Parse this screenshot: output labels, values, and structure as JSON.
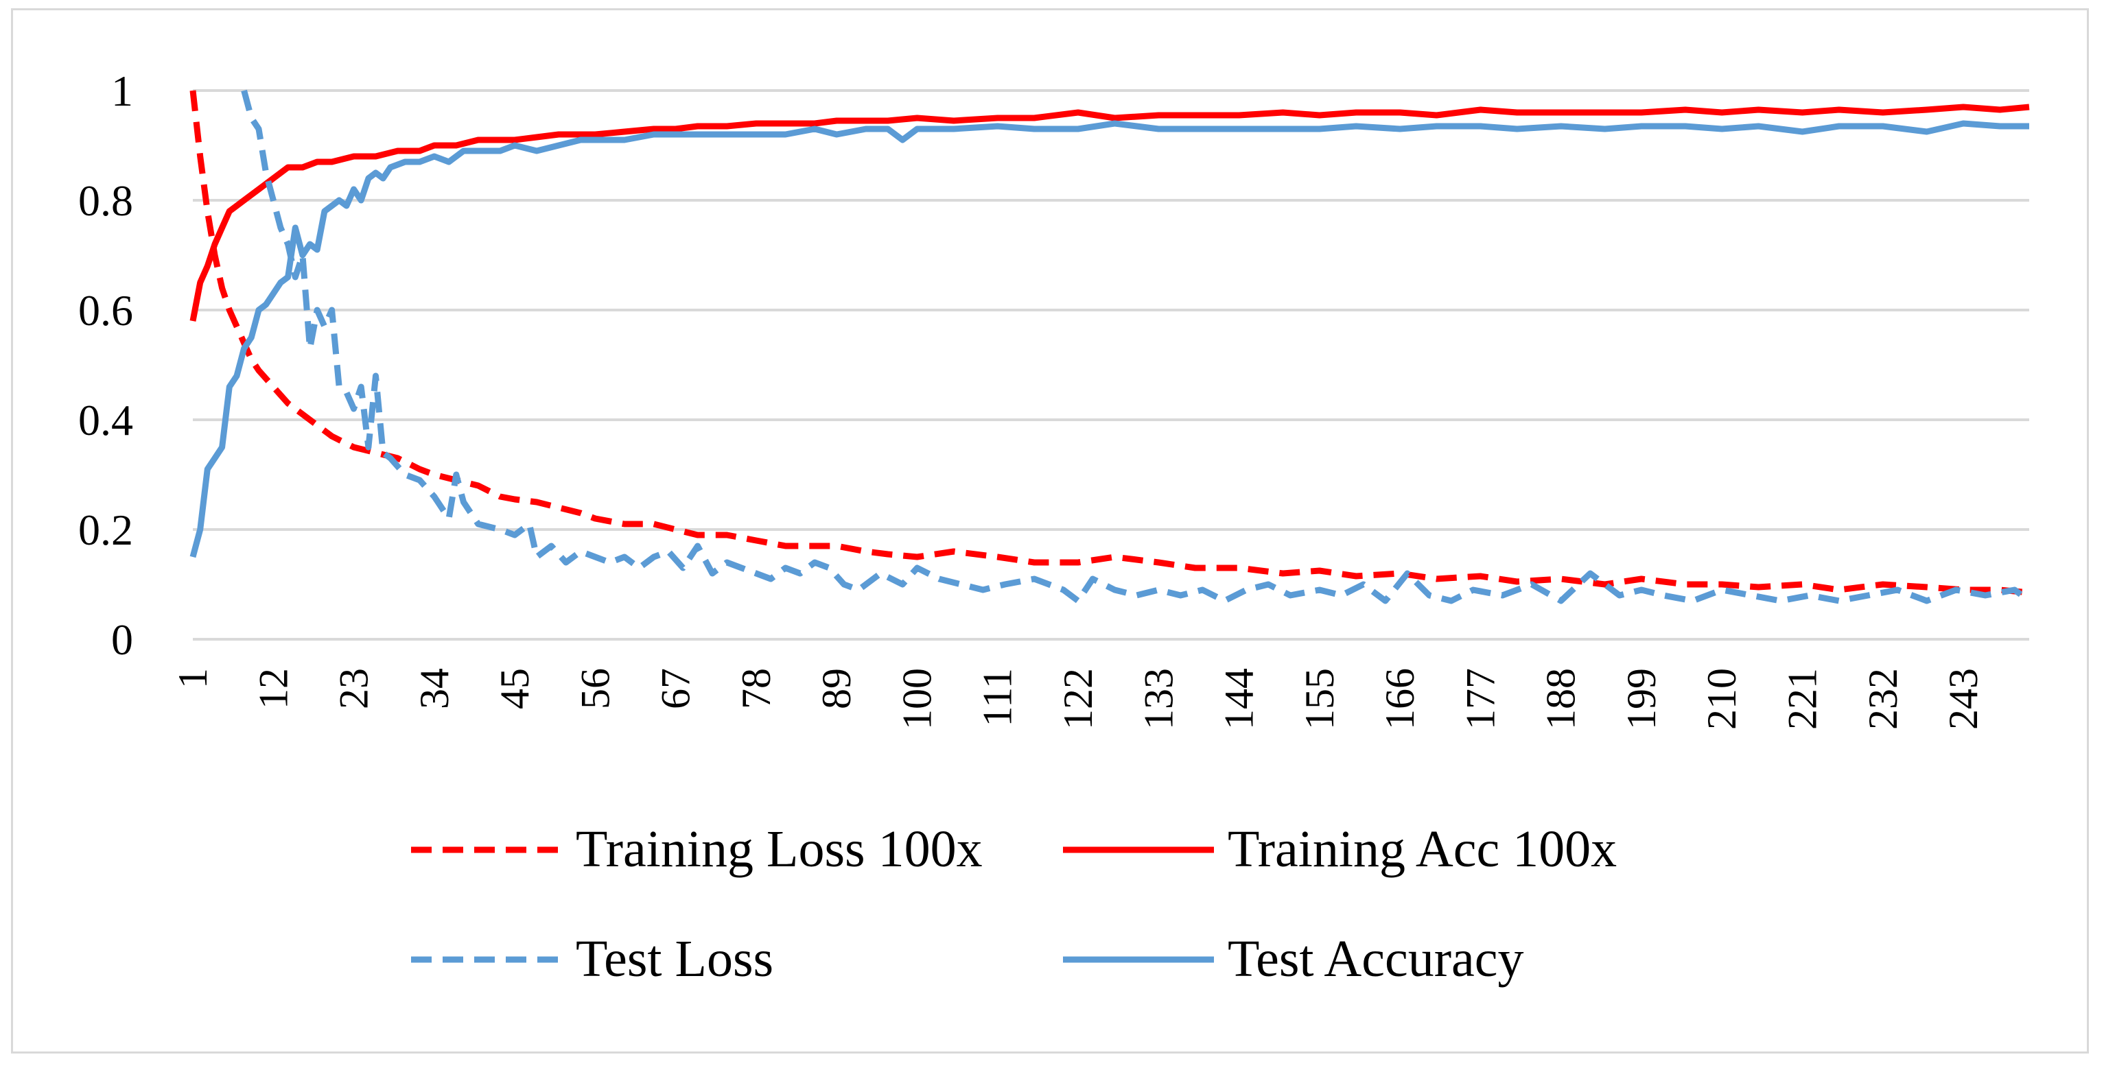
{
  "chart_data": {
    "type": "line",
    "title": "",
    "xlabel": "",
    "ylabel": "",
    "xlim": [
      1,
      252
    ],
    "ylim": [
      0,
      1
    ],
    "y_ticks": [
      "0",
      "0.2",
      "0.4",
      "0.6",
      "0.8",
      "1"
    ],
    "y_tick_values": [
      0,
      0.2,
      0.4,
      0.6,
      0.8,
      1
    ],
    "x_ticks": [
      "1",
      "12",
      "23",
      "34",
      "45",
      "56",
      "67",
      "78",
      "89",
      "100",
      "111",
      "122",
      "133",
      "144",
      "155",
      "166",
      "177",
      "188",
      "199",
      "210",
      "221",
      "232",
      "243"
    ],
    "x_tick_values": [
      1,
      12,
      23,
      34,
      45,
      56,
      67,
      78,
      89,
      100,
      111,
      122,
      133,
      144,
      155,
      166,
      177,
      188,
      199,
      210,
      221,
      232,
      243
    ],
    "grid": true,
    "legend_position": "bottom",
    "series": [
      {
        "name": "Training Loss 100x",
        "color": "#ff0000",
        "dash": "dashed",
        "x": [
          1,
          2,
          3,
          4,
          5,
          6,
          7,
          8,
          9,
          10,
          12,
          14,
          16,
          18,
          20,
          23,
          26,
          29,
          32,
          34,
          37,
          40,
          43,
          45,
          48,
          51,
          54,
          56,
          60,
          64,
          67,
          70,
          74,
          78,
          82,
          86,
          89,
          93,
          96,
          100,
          105,
          111,
          116,
          122,
          127,
          133,
          138,
          144,
          150,
          155,
          160,
          166,
          171,
          177,
          182,
          188,
          194,
          199,
          205,
          210,
          215,
          221,
          226,
          232,
          238,
          243,
          248,
          252
        ],
        "values": [
          1.0,
          0.88,
          0.78,
          0.7,
          0.64,
          0.6,
          0.57,
          0.54,
          0.51,
          0.49,
          0.46,
          0.43,
          0.41,
          0.39,
          0.37,
          0.35,
          0.34,
          0.33,
          0.31,
          0.3,
          0.29,
          0.28,
          0.26,
          0.255,
          0.25,
          0.24,
          0.23,
          0.22,
          0.21,
          0.21,
          0.2,
          0.19,
          0.19,
          0.18,
          0.17,
          0.17,
          0.17,
          0.16,
          0.155,
          0.15,
          0.16,
          0.15,
          0.14,
          0.14,
          0.15,
          0.14,
          0.13,
          0.13,
          0.12,
          0.125,
          0.115,
          0.12,
          0.11,
          0.115,
          0.105,
          0.11,
          0.1,
          0.11,
          0.1,
          0.1,
          0.095,
          0.1,
          0.09,
          0.1,
          0.095,
          0.09,
          0.09,
          0.085
        ]
      },
      {
        "name": "Training Acc 100x",
        "color": "#ff0000",
        "dash": "solid",
        "x": [
          1,
          2,
          3,
          4,
          5,
          6,
          7,
          8,
          9,
          10,
          12,
          14,
          16,
          18,
          20,
          23,
          26,
          29,
          32,
          34,
          37,
          40,
          43,
          45,
          48,
          51,
          56,
          60,
          64,
          67,
          70,
          74,
          78,
          82,
          86,
          89,
          93,
          96,
          100,
          105,
          111,
          116,
          122,
          127,
          133,
          138,
          144,
          150,
          155,
          160,
          166,
          171,
          177,
          182,
          188,
          194,
          199,
          205,
          210,
          215,
          221,
          226,
          232,
          238,
          243,
          248,
          252
        ],
        "values": [
          0.58,
          0.65,
          0.68,
          0.72,
          0.75,
          0.78,
          0.79,
          0.8,
          0.81,
          0.82,
          0.84,
          0.86,
          0.86,
          0.87,
          0.87,
          0.88,
          0.88,
          0.89,
          0.89,
          0.9,
          0.9,
          0.91,
          0.91,
          0.91,
          0.915,
          0.92,
          0.92,
          0.925,
          0.93,
          0.93,
          0.935,
          0.935,
          0.94,
          0.94,
          0.94,
          0.945,
          0.945,
          0.945,
          0.95,
          0.945,
          0.95,
          0.95,
          0.96,
          0.95,
          0.955,
          0.955,
          0.955,
          0.96,
          0.955,
          0.96,
          0.96,
          0.955,
          0.965,
          0.96,
          0.96,
          0.96,
          0.96,
          0.965,
          0.96,
          0.965,
          0.96,
          0.965,
          0.96,
          0.965,
          0.97,
          0.965,
          0.97
        ]
      },
      {
        "name": "Test Loss",
        "color": "#5b9bd5",
        "dash": "dashed",
        "x": [
          8,
          9,
          10,
          11,
          12,
          13,
          14,
          15,
          16,
          17,
          18,
          19,
          20,
          21,
          22,
          23,
          24,
          25,
          26,
          27,
          28,
          30,
          32,
          34,
          36,
          37,
          38,
          40,
          43,
          45,
          47,
          48,
          50,
          52,
          54,
          56,
          58,
          60,
          62,
          64,
          66,
          68,
          70,
          72,
          74,
          76,
          78,
          80,
          82,
          84,
          86,
          88,
          90,
          92,
          95,
          98,
          100,
          103,
          106,
          109,
          112,
          116,
          120,
          122,
          124,
          127,
          130,
          133,
          136,
          139,
          142,
          145,
          148,
          151,
          155,
          158,
          161,
          164,
          167,
          170,
          173,
          176,
          180,
          184,
          188,
          192,
          196,
          199,
          202,
          206,
          210,
          214,
          218,
          222,
          226,
          230,
          234,
          238,
          242,
          246,
          250,
          252
        ],
        "values": [
          1.0,
          0.95,
          0.93,
          0.85,
          0.8,
          0.75,
          0.72,
          0.66,
          0.7,
          0.53,
          0.6,
          0.57,
          0.6,
          0.46,
          0.45,
          0.42,
          0.46,
          0.35,
          0.48,
          0.34,
          0.33,
          0.3,
          0.29,
          0.26,
          0.22,
          0.3,
          0.25,
          0.21,
          0.2,
          0.19,
          0.21,
          0.15,
          0.17,
          0.14,
          0.16,
          0.15,
          0.14,
          0.15,
          0.13,
          0.15,
          0.16,
          0.13,
          0.17,
          0.12,
          0.14,
          0.13,
          0.12,
          0.11,
          0.13,
          0.12,
          0.14,
          0.13,
          0.1,
          0.09,
          0.12,
          0.1,
          0.13,
          0.11,
          0.1,
          0.09,
          0.1,
          0.11,
          0.09,
          0.07,
          0.11,
          0.09,
          0.08,
          0.09,
          0.08,
          0.09,
          0.07,
          0.09,
          0.1,
          0.08,
          0.09,
          0.08,
          0.1,
          0.07,
          0.12,
          0.08,
          0.07,
          0.09,
          0.08,
          0.1,
          0.07,
          0.12,
          0.08,
          0.09,
          0.08,
          0.07,
          0.09,
          0.08,
          0.07,
          0.08,
          0.07,
          0.08,
          0.09,
          0.07,
          0.09,
          0.08,
          0.09,
          0.07
        ]
      },
      {
        "name": "Test Accuracy",
        "color": "#5b9bd5",
        "dash": "solid",
        "x": [
          1,
          2,
          3,
          4,
          5,
          6,
          7,
          8,
          9,
          10,
          11,
          12,
          13,
          14,
          15,
          16,
          17,
          18,
          19,
          20,
          21,
          22,
          23,
          24,
          25,
          26,
          27,
          28,
          30,
          32,
          34,
          36,
          38,
          40,
          43,
          45,
          48,
          51,
          54,
          56,
          60,
          64,
          67,
          70,
          74,
          78,
          82,
          86,
          89,
          93,
          96,
          98,
          100,
          105,
          111,
          116,
          122,
          127,
          133,
          138,
          144,
          150,
          155,
          160,
          166,
          171,
          177,
          182,
          188,
          194,
          199,
          205,
          210,
          215,
          221,
          226,
          232,
          238,
          243,
          248,
          252
        ],
        "values": [
          0.15,
          0.2,
          0.31,
          0.33,
          0.35,
          0.46,
          0.48,
          0.53,
          0.55,
          0.6,
          0.61,
          0.63,
          0.65,
          0.66,
          0.75,
          0.7,
          0.72,
          0.71,
          0.78,
          0.79,
          0.8,
          0.79,
          0.82,
          0.8,
          0.84,
          0.85,
          0.84,
          0.86,
          0.87,
          0.87,
          0.88,
          0.87,
          0.89,
          0.89,
          0.89,
          0.9,
          0.89,
          0.9,
          0.91,
          0.91,
          0.91,
          0.92,
          0.92,
          0.92,
          0.92,
          0.92,
          0.92,
          0.93,
          0.92,
          0.93,
          0.93,
          0.91,
          0.93,
          0.93,
          0.935,
          0.93,
          0.93,
          0.94,
          0.93,
          0.93,
          0.93,
          0.93,
          0.93,
          0.935,
          0.93,
          0.935,
          0.935,
          0.93,
          0.935,
          0.93,
          0.935,
          0.935,
          0.93,
          0.935,
          0.925,
          0.935,
          0.935,
          0.925,
          0.94,
          0.935,
          0.935
        ]
      }
    ]
  }
}
